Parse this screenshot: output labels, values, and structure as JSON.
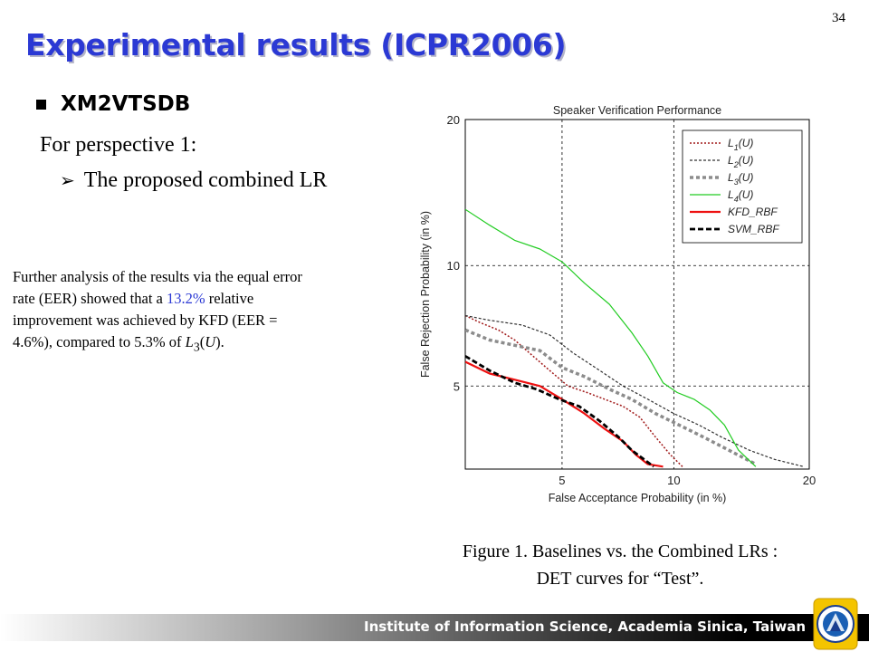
{
  "page_number": "34",
  "title": "Experimental results (ICPR2006)",
  "bullet": "XM2VTSDB",
  "sub_line": "For perspective 1:",
  "arrow_line": "The proposed combined LR",
  "note": {
    "t1": "Further analysis of the results via the equal error rate (EER) showed that a ",
    "highlight": "13.2%",
    "t2": " relative improvement was achieved by KFD (EER = 4.6%), compared to 5.3% of ",
    "l3_letter": "L",
    "l3_sub": "3",
    "l3_paren_open": "(",
    "l3_u": "U",
    "l3_paren_close": ").",
    "highlight_color": "#2b39d4"
  },
  "caption": {
    "line1": "Figure 1. Baselines vs. the Combined LRs :",
    "line2": "DET curves for “Test”."
  },
  "footer": {
    "text": "Institute of Information Science, Academia Sinica, Taiwan",
    "logo_icon": "institute-seal-logo"
  },
  "chart_data": {
    "type": "line",
    "title": "Speaker Verification Performance",
    "xlabel": "False Acceptance Probability (in %)",
    "ylabel": "False Rejection Probability (in %)",
    "x_ticks": [
      5,
      10,
      20
    ],
    "y_ticks": [
      5,
      10,
      20
    ],
    "xlim": [
      2.5,
      20
    ],
    "ylim": [
      2.9,
      20
    ],
    "scale": "normal-deviate",
    "grid": true,
    "legend_position": "top-right",
    "series": [
      {
        "name": "L1(U)",
        "label_letter": "L",
        "label_sub": "1",
        "label_rest": "(U)",
        "color": "#a01818",
        "dash": "2,2",
        "width": 1.5,
        "points": [
          [
            2.5,
            7.6
          ],
          [
            2.8,
            7.3
          ],
          [
            3.2,
            7.0
          ],
          [
            3.6,
            6.6
          ],
          [
            4.1,
            6.0
          ],
          [
            4.6,
            5.5
          ],
          [
            5.2,
            5.0
          ],
          [
            5.9,
            4.8
          ],
          [
            6.6,
            4.6
          ],
          [
            7.4,
            4.4
          ],
          [
            8.2,
            4.1
          ],
          [
            9.0,
            3.6
          ],
          [
            9.8,
            3.2
          ],
          [
            10.5,
            2.95
          ]
        ]
      },
      {
        "name": "L2(U)",
        "label_letter": "L",
        "label_sub": "2",
        "label_rest": "(U)",
        "color": "#303030",
        "dash": "3,2",
        "width": 1.2,
        "points": [
          [
            2.5,
            7.6
          ],
          [
            3.0,
            7.4
          ],
          [
            3.8,
            7.2
          ],
          [
            4.6,
            6.8
          ],
          [
            5.4,
            6.1
          ],
          [
            6.4,
            5.5
          ],
          [
            7.4,
            5.0
          ],
          [
            8.6,
            4.6
          ],
          [
            10.0,
            4.2
          ],
          [
            11.5,
            3.9
          ],
          [
            13.0,
            3.6
          ],
          [
            15.0,
            3.3
          ],
          [
            17.0,
            3.1
          ],
          [
            19.5,
            2.95
          ]
        ]
      },
      {
        "name": "L3(U)",
        "label_letter": "L",
        "label_sub": "3",
        "label_rest": "(U)",
        "color": "#8c8c8c",
        "dash": "4,3",
        "width": 3.5,
        "points": [
          [
            2.5,
            7.0
          ],
          [
            3.0,
            6.6
          ],
          [
            3.6,
            6.4
          ],
          [
            4.3,
            6.2
          ],
          [
            5.0,
            5.6
          ],
          [
            5.8,
            5.3
          ],
          [
            6.8,
            4.9
          ],
          [
            7.8,
            4.6
          ],
          [
            9.0,
            4.2
          ],
          [
            10.3,
            3.9
          ],
          [
            11.8,
            3.6
          ],
          [
            13.5,
            3.3
          ],
          [
            15.5,
            3.0
          ]
        ]
      },
      {
        "name": "L4(U)",
        "label_letter": "L",
        "label_sub": "4",
        "label_rest": "(U)",
        "color": "#22cc22",
        "dash": "",
        "width": 1.2,
        "points": [
          [
            2.5,
            13.3
          ],
          [
            3.0,
            12.3
          ],
          [
            3.6,
            11.4
          ],
          [
            4.3,
            10.9
          ],
          [
            5.0,
            10.2
          ],
          [
            5.8,
            9.1
          ],
          [
            6.8,
            8.1
          ],
          [
            7.8,
            6.9
          ],
          [
            8.6,
            6.0
          ],
          [
            9.4,
            5.1
          ],
          [
            10.2,
            4.8
          ],
          [
            11.2,
            4.6
          ],
          [
            12.2,
            4.3
          ],
          [
            13.2,
            3.9
          ],
          [
            14.2,
            3.3
          ],
          [
            15.5,
            2.95
          ]
        ]
      },
      {
        "name": "KFD_RBF",
        "label_letter": "",
        "label_sub": "",
        "label_rest": "KFD_RBF",
        "color": "#ee1111",
        "dash": "",
        "width": 2.2,
        "points": [
          [
            2.5,
            5.8
          ],
          [
            3.0,
            5.4
          ],
          [
            3.6,
            5.2
          ],
          [
            4.3,
            5.0
          ],
          [
            5.0,
            4.6
          ],
          [
            5.8,
            4.2
          ],
          [
            6.6,
            3.8
          ],
          [
            7.4,
            3.5
          ],
          [
            8.0,
            3.2
          ],
          [
            8.6,
            3.0
          ],
          [
            9.4,
            2.95
          ]
        ]
      },
      {
        "name": "SVM_RBF",
        "label_letter": "",
        "label_sub": "",
        "label_rest": "SVM_RBF",
        "color": "#000000",
        "dash": "6,3",
        "width": 2.8,
        "points": [
          [
            2.5,
            6.0
          ],
          [
            3.0,
            5.5
          ],
          [
            3.6,
            5.1
          ],
          [
            4.2,
            4.9
          ],
          [
            4.9,
            4.6
          ],
          [
            5.6,
            4.4
          ],
          [
            6.4,
            4.0
          ],
          [
            7.2,
            3.6
          ],
          [
            7.8,
            3.3
          ],
          [
            8.4,
            3.1
          ],
          [
            8.9,
            2.95
          ]
        ]
      }
    ]
  }
}
